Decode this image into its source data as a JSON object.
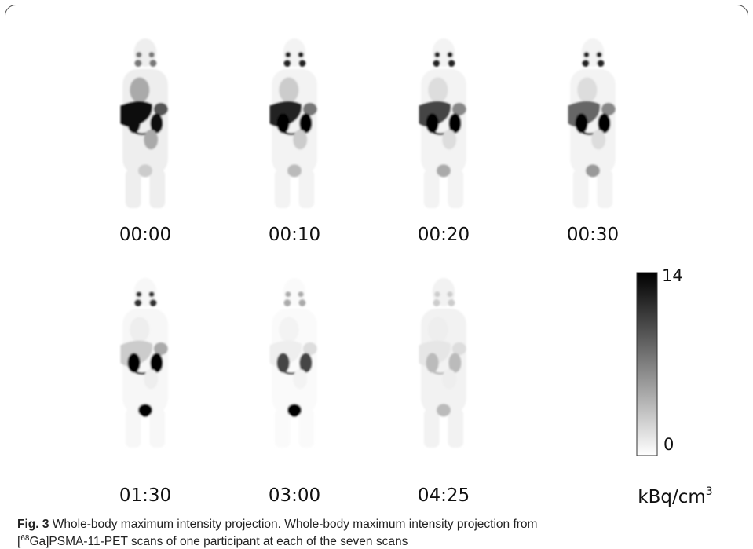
{
  "panels": [
    {
      "label": "00:00"
    },
    {
      "label": "00:10"
    },
    {
      "label": "00:20"
    },
    {
      "label": "00:30"
    },
    {
      "label": "01:30"
    },
    {
      "label": "03:00"
    },
    {
      "label": "04:25"
    }
  ],
  "colorbar": {
    "max": 14,
    "min": 0,
    "unit": "kBq/cm",
    "unit_sup": "3"
  },
  "caption": {
    "label": "Fig. 3",
    "text": "Whole-body maximum intensity projection. Whole-body maximum intensity projection from",
    "bracket": "[",
    "sup": "68",
    "text2": "Ga]PSMA-11-PET scans of one participant at each of the seven scans"
  }
}
